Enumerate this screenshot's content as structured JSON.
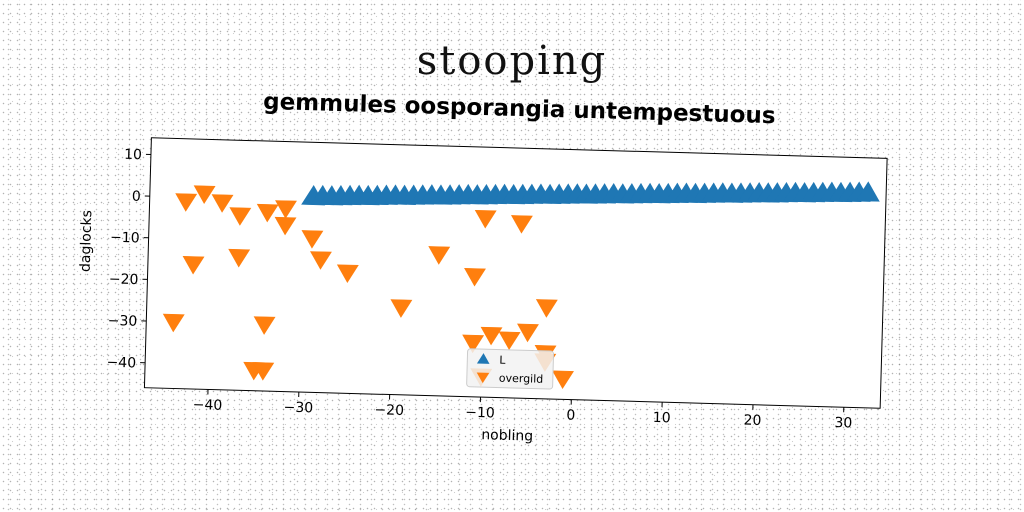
{
  "suptitle": "stooping",
  "chart_data": {
    "type": "scatter",
    "title": "gemmules oosporangia untempestuous",
    "xlabel": "nobling",
    "ylabel": "daglocks",
    "xlim": [
      -47,
      34
    ],
    "ylim": [
      -46,
      14
    ],
    "xticks": [
      -40,
      -30,
      -20,
      -10,
      0,
      10,
      20,
      30
    ],
    "yticks": [
      -40,
      -30,
      -20,
      -10,
      0,
      10
    ],
    "grid": false,
    "legend_placement": "lower center",
    "series": [
      {
        "name": "L",
        "marker": "triangle-up",
        "color": "#1f77b4",
        "x": [
          -29,
          -28,
          -27,
          -26,
          -25,
          -24,
          -23,
          -22,
          -21,
          -20,
          -19,
          -18,
          -17,
          -16,
          -15,
          -14,
          -13,
          -12,
          -11,
          -10,
          -9,
          -8,
          -7,
          -6,
          -5,
          -4,
          -3,
          -2,
          -1,
          0,
          1,
          2,
          3,
          4,
          5,
          6,
          7,
          8,
          9,
          10,
          11,
          12,
          13,
          14,
          15,
          16,
          17,
          18,
          19,
          20,
          21,
          22,
          23,
          24,
          25,
          26,
          27,
          28,
          29,
          30,
          31,
          32
        ],
        "y": [
          1.0,
          1.1,
          1.1,
          1.2,
          1.3,
          1.4,
          1.4,
          1.5,
          1.6,
          1.7,
          1.7,
          1.8,
          1.9,
          2.0,
          2.0,
          2.1,
          2.2,
          2.3,
          2.3,
          2.4,
          2.5,
          2.6,
          2.6,
          2.7,
          2.8,
          2.9,
          2.9,
          3.0,
          3.1,
          3.2,
          3.2,
          3.3,
          3.4,
          3.5,
          3.5,
          3.6,
          3.7,
          3.8,
          3.8,
          3.9,
          4.0,
          4.1,
          4.1,
          4.2,
          4.3,
          4.4,
          4.4,
          4.5,
          4.6,
          4.7,
          4.7,
          4.8,
          4.9,
          5.0,
          5.0,
          5.1,
          5.2,
          5.3,
          5.3,
          5.4,
          5.5,
          5.6
        ]
      },
      {
        "name": "overgild",
        "marker": "triangle-down",
        "color": "#ff7f0e",
        "x": [
          -43,
          -41,
          -39,
          -37,
          -34,
          -32,
          -32,
          -29,
          -28,
          -25,
          -42,
          -37,
          -19,
          -15,
          -11,
          -10,
          -6,
          -44,
          -34,
          -11,
          -9,
          -7,
          -5,
          -3,
          -3,
          -1,
          -35,
          -34,
          -10,
          -3
        ],
        "y": [
          -1,
          1,
          -1,
          -4,
          -3,
          -2,
          -6,
          -9,
          -14,
          -17,
          -16,
          -14,
          -25,
          -12,
          -17,
          -3,
          -4,
          -30,
          -30,
          -33,
          -31,
          -32,
          -30,
          -24,
          -37,
          -41,
          -41,
          -41,
          -41,
          -35
        ]
      }
    ]
  }
}
